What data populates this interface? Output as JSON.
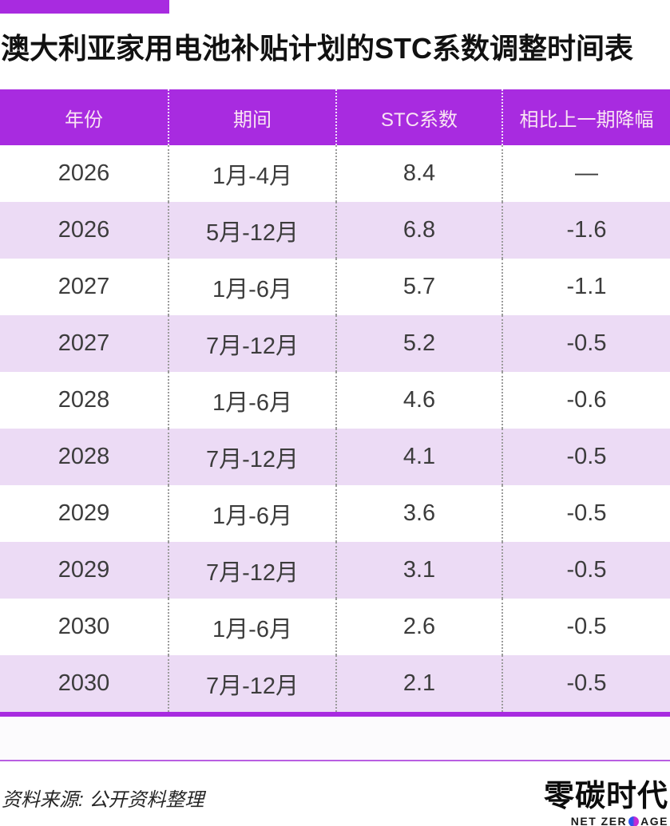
{
  "header": {
    "title": "澳大利亚家用电池补贴计划的STC系数调整时间表"
  },
  "chart_data": {
    "type": "table",
    "title": "澳大利亚家用电池补贴计划的STC系数调整时间表",
    "columns": [
      "年份",
      "期间",
      "STC系数",
      "相比上一期降幅"
    ],
    "rows": [
      [
        "2026",
        "1月-4月",
        "8.4",
        "—"
      ],
      [
        "2026",
        "5月-12月",
        "6.8",
        "-1.6"
      ],
      [
        "2027",
        "1月-6月",
        "5.7",
        "-1.1"
      ],
      [
        "2027",
        "7月-12月",
        "5.2",
        "-0.5"
      ],
      [
        "2028",
        "1月-6月",
        "4.6",
        "-0.6"
      ],
      [
        "2028",
        "7月-12月",
        "4.1",
        "-0.5"
      ],
      [
        "2029",
        "1月-6月",
        "3.6",
        "-0.5"
      ],
      [
        "2029",
        "7月-12月",
        "3.1",
        "-0.5"
      ],
      [
        "2030",
        "1月-6月",
        "2.6",
        "-0.5"
      ],
      [
        "2030",
        "7月-12月",
        "2.1",
        "-0.5"
      ]
    ]
  },
  "footer": {
    "source": "资料来源: 公开资料整理",
    "logo_cn": "零碳时代",
    "logo_en_left": "NET ZER",
    "logo_en_right": "AGE"
  },
  "colors": {
    "accent_purple": "#a82be0",
    "row_alt_lavender": "#ecdbf5",
    "header_text": "#f9e4f3",
    "body_text": "#3c3c3c",
    "logo_dot_blue": "#2e55ee",
    "logo_dot_magenta": "#c32bd5"
  }
}
